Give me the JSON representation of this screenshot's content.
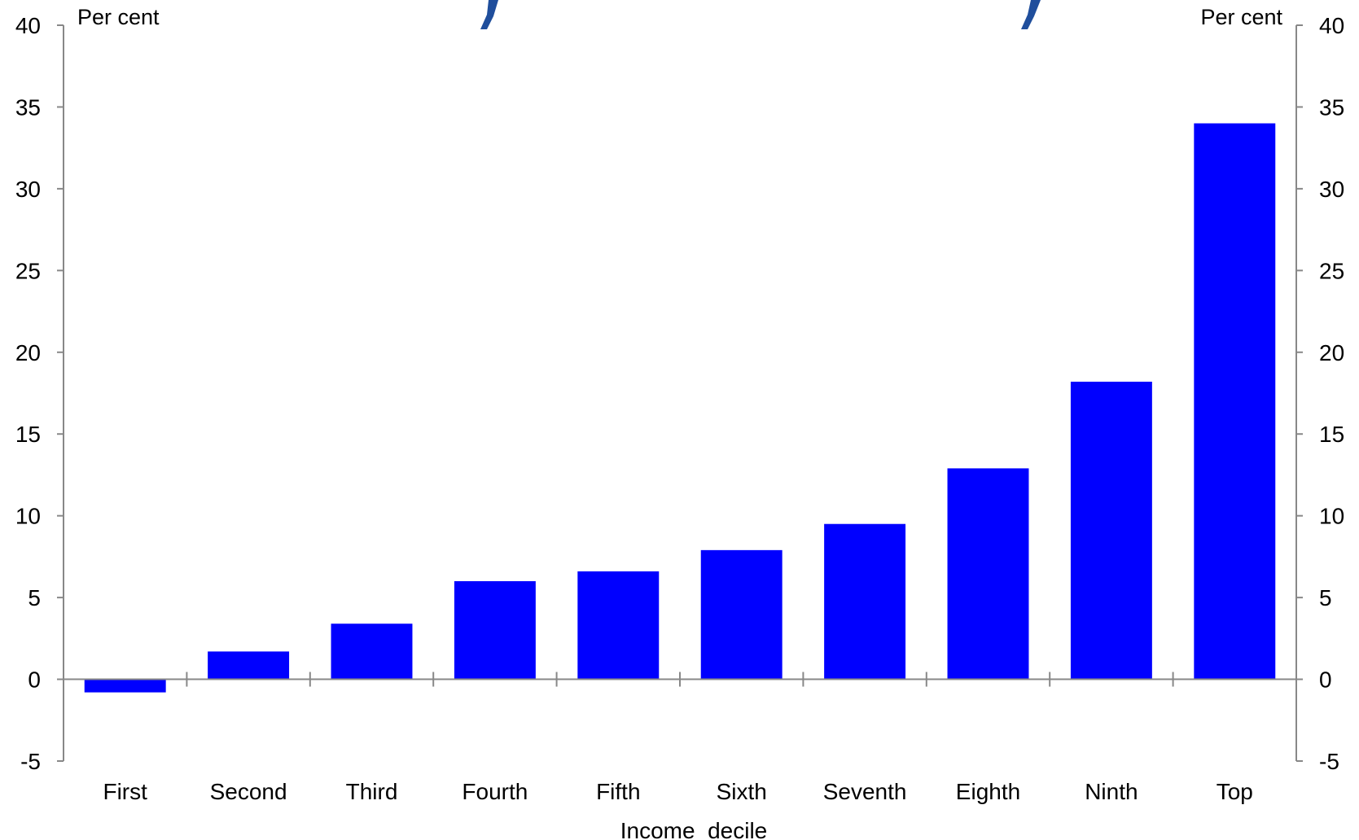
{
  "chart_data": {
    "type": "bar",
    "categories": [
      "First",
      "Second",
      "Third",
      "Fourth",
      "Fifth",
      "Sixth",
      "Seventh",
      "Eighth",
      "Ninth",
      "Top"
    ],
    "values": [
      -0.8,
      1.7,
      3.4,
      6.0,
      6.6,
      7.9,
      9.5,
      12.9,
      18.2,
      34.0
    ],
    "xlabel": "Income  decile",
    "left_unit": "Per cent",
    "right_unit": "Per cent",
    "ylim": [
      -5,
      40
    ],
    "yticks": [
      40,
      35,
      30,
      25,
      20,
      15,
      10,
      5,
      0,
      -5
    ],
    "grid": false,
    "bar_color": "#0000ff",
    "axis_color": "#888888"
  }
}
